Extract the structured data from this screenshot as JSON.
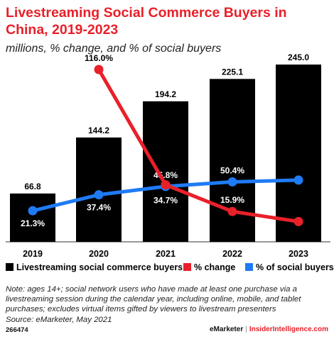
{
  "header": {
    "title": "Livestreaming Social Commerce Buyers in China, 2019-2023",
    "subtitle": "millions, % change, and % of social buyers"
  },
  "chart_data": {
    "type": "bar",
    "categories": [
      "2019",
      "2020",
      "2021",
      "2022",
      "2023"
    ],
    "series": [
      {
        "name": "Livestreaming social commerce buyers",
        "type": "bar",
        "color": "#000000",
        "values": [
          66.8,
          144.2,
          194.2,
          225.1,
          245.0
        ],
        "labels": [
          "66.8",
          "144.2",
          "194.2",
          "225.1",
          "245.0"
        ]
      },
      {
        "name": "% change",
        "type": "line",
        "color": "#e8202a",
        "values": [
          null,
          116.0,
          34.7,
          15.9,
          8.8
        ],
        "labels": [
          "",
          "116.0%",
          "34.7%",
          "15.9%",
          "8.8%"
        ]
      },
      {
        "name": "% of social buyers",
        "type": "line",
        "color": "#1f7bf5",
        "values": [
          21.3,
          37.4,
          45.8,
          50.4,
          52.2
        ],
        "labels": [
          "21.3%",
          "37.4%",
          "45.8%",
          "50.4%",
          "52.2%"
        ]
      }
    ],
    "legend_position": "bottom",
    "grid": false
  },
  "notes": {
    "line1": "Note: ages 14+; social network users who have made at least one purchase via a",
    "line2": "livestreaming session during the calendar year, including online, mobile, and tablet",
    "line3": "purchases; excludes virtual items gifted by viewers to livestream presenters",
    "source": "Source: eMarketer, May 2021"
  },
  "footer": {
    "id": "266474",
    "brand1": "eMarketer",
    "separator": "|",
    "brand2": "InsiderIntelligence.com"
  }
}
